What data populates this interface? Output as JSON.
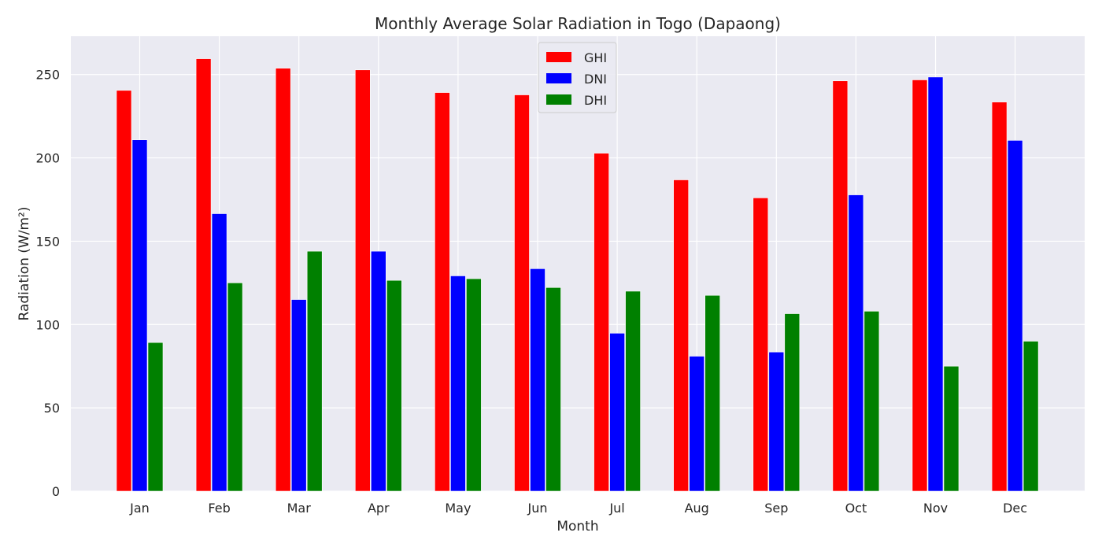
{
  "chart_data": {
    "type": "bar",
    "title": "Monthly Average Solar Radiation in Togo (Dapaong)",
    "xlabel": "Month",
    "ylabel": "Radiation (W/m²)",
    "categories": [
      "Jan",
      "Feb",
      "Mar",
      "Apr",
      "May",
      "Jun",
      "Jul",
      "Aug",
      "Sep",
      "Oct",
      "Nov",
      "Dec"
    ],
    "series": [
      {
        "name": "GHI",
        "color": "#ff0000",
        "values": [
          240.5,
          259.5,
          253.8,
          252.8,
          239.2,
          237.8,
          202.8,
          186.8,
          176.0,
          246.2,
          246.8,
          233.5
        ]
      },
      {
        "name": "DNI",
        "color": "#0000ff",
        "values": [
          210.8,
          166.5,
          115.0,
          144.0,
          129.2,
          133.5,
          94.8,
          81.0,
          83.5,
          177.8,
          248.5,
          210.5
        ]
      },
      {
        "name": "DHI",
        "color": "#008000",
        "values": [
          89.2,
          125.0,
          144.0,
          126.5,
          127.5,
          122.2,
          120.0,
          117.5,
          106.5,
          108.0,
          75.0,
          90.0
        ]
      }
    ],
    "ylim": [
      0,
      273
    ],
    "yticks": [
      0,
      50,
      100,
      150,
      200,
      250
    ],
    "grid": true,
    "legend_position": "top-center",
    "background": "#eaeaf2",
    "grid_color": "#ffffff"
  }
}
